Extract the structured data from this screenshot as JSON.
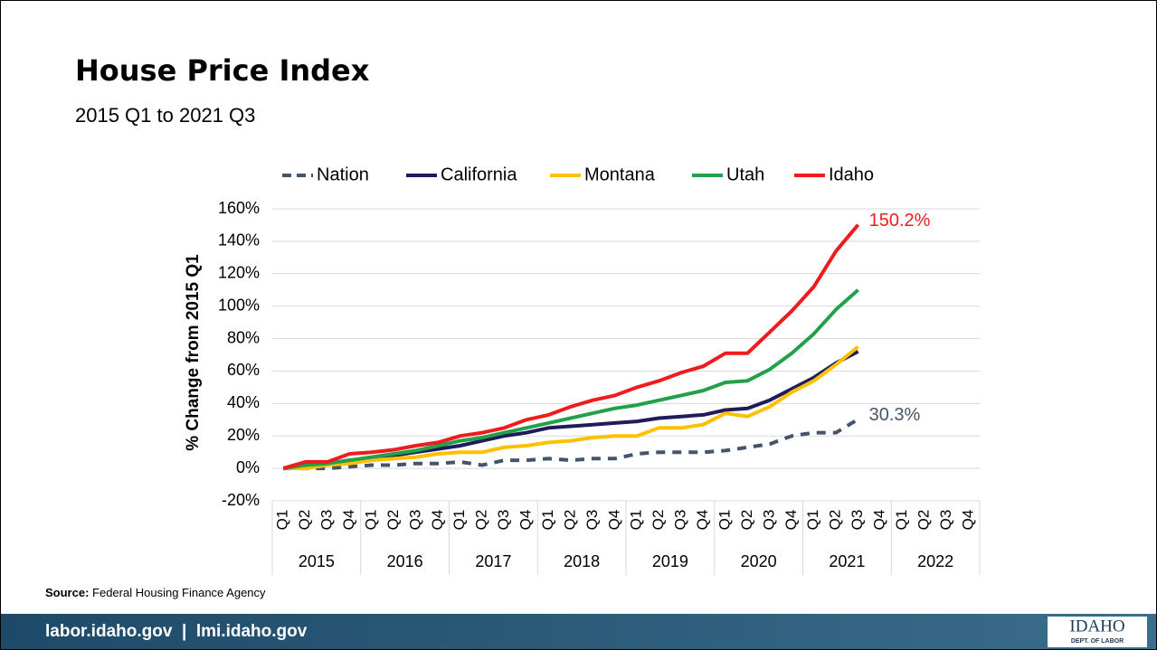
{
  "title": "House Price Index",
  "subtitle": "2015 Q1 to 2021 Q3",
  "chart_data": {
    "type": "line",
    "y_label": "% Change from 2015 Q1",
    "categories": [
      "Q1",
      "Q2",
      "Q3",
      "Q4",
      "Q1",
      "Q2",
      "Q3",
      "Q4",
      "Q1",
      "Q2",
      "Q3",
      "Q4",
      "Q1",
      "Q2",
      "Q3",
      "Q4",
      "Q1",
      "Q2",
      "Q3",
      "Q4",
      "Q1",
      "Q2",
      "Q3",
      "Q4",
      "Q1",
      "Q2",
      "Q3",
      "Q4",
      "Q1",
      "Q2",
      "Q3",
      "Q4"
    ],
    "category_groups": [
      "2015",
      "2016",
      "2017",
      "2018",
      "2019",
      "2020",
      "2021",
      "2022"
    ],
    "ylim": [
      -20,
      160
    ],
    "yticks": [
      {
        "value": -20,
        "label": "-20%"
      },
      {
        "value": 0,
        "label": "0%"
      },
      {
        "value": 20,
        "label": "20%"
      },
      {
        "value": 40,
        "label": "40%"
      },
      {
        "value": 60,
        "label": "60%"
      },
      {
        "value": 80,
        "label": "80%"
      },
      {
        "value": 100,
        "label": "100%"
      },
      {
        "value": 120,
        "label": "120%"
      },
      {
        "value": 140,
        "label": "140%"
      },
      {
        "value": 160,
        "label": "160%"
      }
    ],
    "grid": true,
    "legend": "top",
    "series": [
      {
        "name": "Nation",
        "color": "#44546a",
        "dashed": true,
        "values": [
          0,
          0,
          0,
          1,
          2,
          2,
          3,
          3,
          4,
          2,
          5,
          5,
          6,
          5,
          6,
          6,
          9,
          10,
          10,
          10,
          11,
          13,
          15,
          20,
          22,
          22,
          30.3,
          null,
          null,
          null,
          null,
          null
        ],
        "value_labels": [
          null,
          null,
          null,
          null,
          null,
          null,
          null,
          null,
          null,
          null,
          null,
          null,
          null,
          null,
          null,
          null,
          null,
          null,
          null,
          null,
          null,
          null,
          null,
          null,
          null,
          null,
          "30.3%",
          null,
          null,
          null,
          null,
          null
        ]
      },
      {
        "name": "California",
        "color": "#1f1c5c",
        "values": [
          0,
          1,
          3,
          5,
          6,
          8,
          10,
          12,
          14,
          17,
          20,
          22,
          25,
          26,
          27,
          28,
          29,
          31,
          32,
          33,
          36,
          37,
          42,
          49,
          56,
          65,
          72,
          null,
          null,
          null,
          null,
          null
        ]
      },
      {
        "name": "Montana",
        "color": "#ffc000",
        "values": [
          0,
          0,
          2,
          3,
          5,
          6,
          7,
          9,
          10,
          10,
          13,
          14,
          16,
          17,
          19,
          20,
          20,
          25,
          25,
          27,
          34,
          32,
          38,
          47,
          54,
          64,
          75,
          null,
          null,
          null,
          null,
          null
        ]
      },
      {
        "name": "Utah",
        "color": "#22a14a",
        "values": [
          0,
          2,
          3,
          5,
          7,
          9,
          11,
          14,
          17,
          19,
          22,
          25,
          28,
          31,
          34,
          37,
          39,
          42,
          45,
          48,
          53,
          54,
          61,
          71,
          83,
          98,
          110,
          null,
          null,
          null,
          null,
          null
        ]
      },
      {
        "name": "Idaho",
        "color": "#ee1c1c",
        "values": [
          0,
          4,
          4,
          9,
          10,
          11.5,
          14,
          16,
          20,
          22,
          25,
          30,
          33,
          38,
          42,
          45,
          50,
          54,
          59,
          63,
          71,
          71,
          84,
          97,
          112,
          134,
          150.2,
          null,
          null,
          null,
          null,
          null
        ],
        "value_labels": [
          null,
          null,
          null,
          null,
          null,
          null,
          null,
          null,
          null,
          null,
          null,
          null,
          null,
          null,
          null,
          null,
          null,
          null,
          null,
          null,
          null,
          null,
          null,
          null,
          null,
          null,
          "150.2%",
          null,
          null,
          null,
          null,
          null
        ]
      }
    ]
  },
  "source": {
    "label": "Source:",
    "text": "Federal Housing Finance Agency"
  },
  "footer": "labor.idaho.gov  |  lmi.idaho.gov",
  "logo": {
    "name": "IDAHO",
    "sub": "DEPT. OF LABOR"
  }
}
